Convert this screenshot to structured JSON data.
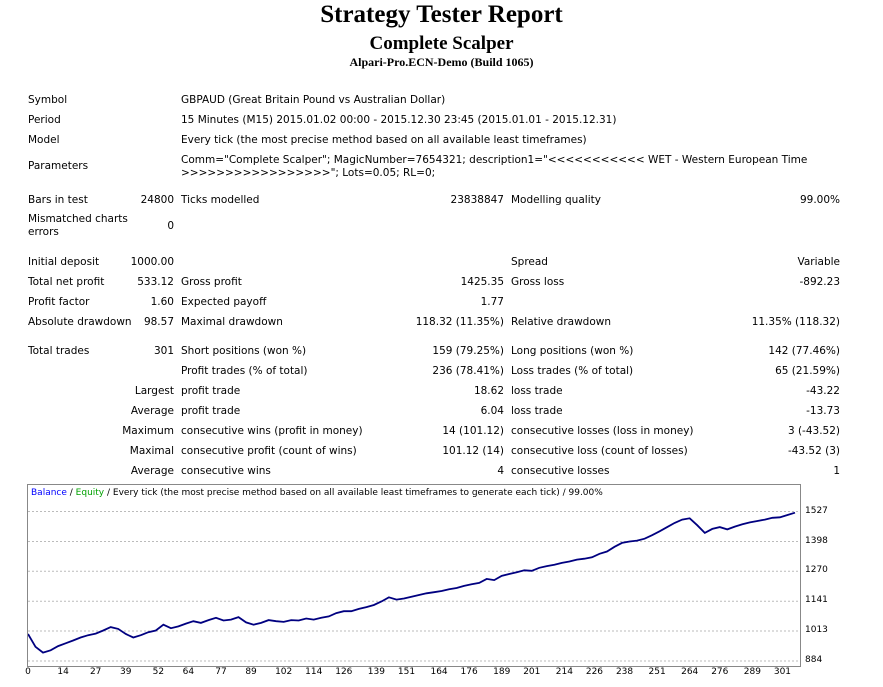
{
  "report": {
    "title": "Strategy Tester Report",
    "expert": "Complete Scalper",
    "server": "Alpari-Pro.ECN-Demo (Build 1065)"
  },
  "info": {
    "symbol_label": "Symbol",
    "symbol_value": "GBPAUD (Great Britain Pound vs Australian Dollar)",
    "period_label": "Period",
    "period_value": "15 Minutes (M15) 2015.01.02 00:00 - 2015.12.30 23:45 (2015.01.01 - 2015.12.31)",
    "model_label": "Model",
    "model_value": "Every tick (the most precise method based on all available least timeframes)",
    "parameters_label": "Parameters",
    "parameters_line1": "Comm=\"Complete Scalper\"; MagicNumber=7654321; description1=\"<<<<<<<<<<< WET - Western European Time",
    "parameters_line2": ">>>>>>>>>>>>>>>>>\"; Lots=0.05; RL=0;"
  },
  "bars": {
    "bars_label": "Bars in test",
    "bars_value": "24800",
    "ticks_label": "Ticks modelled",
    "ticks_value": "23838847",
    "quality_label": "Modelling quality",
    "quality_value": "99.00%",
    "mismatch_label": "Mismatched charts errors",
    "mismatch_value": "0"
  },
  "stats": {
    "deposit_label": "Initial deposit",
    "deposit_value": "1000.00",
    "spread_label": "Spread",
    "spread_value": "Variable",
    "net_label": "Total net profit",
    "net_value": "533.12",
    "gross_profit_label": "Gross profit",
    "gross_profit_value": "1425.35",
    "gross_loss_label": "Gross loss",
    "gross_loss_value": "-892.23",
    "pf_label": "Profit factor",
    "pf_value": "1.60",
    "payoff_label": "Expected payoff",
    "payoff_value": "1.77",
    "abs_dd_label": "Absolute drawdown",
    "abs_dd_value": "98.57",
    "max_dd_label": "Maximal drawdown",
    "max_dd_value": "118.32 (11.35%)",
    "rel_dd_label": "Relative drawdown",
    "rel_dd_value": "11.35% (118.32)"
  },
  "trades": {
    "total_label": "Total trades",
    "total_value": "301",
    "short_label": "Short positions (won %)",
    "short_value": "159 (79.25%)",
    "long_label": "Long positions (won %)",
    "long_value": "142 (77.46%)",
    "pt_label": "Profit trades (% of total)",
    "pt_value": "236 (78.41%)",
    "lt_label": "Loss trades (% of total)",
    "lt_value": "65 (21.59%)",
    "largest_label": "Largest",
    "largest_profit_label": "profit trade",
    "largest_profit_value": "18.62",
    "largest_loss_label": "loss trade",
    "largest_loss_value": "-43.22",
    "average_label": "Average",
    "average_profit_label": "profit trade",
    "average_profit_value": "6.04",
    "average_loss_label": "loss trade",
    "average_loss_value": "-13.73",
    "maximum_label": "Maximum",
    "max_wins_label": "consecutive wins (profit in money)",
    "max_wins_value": "14 (101.12)",
    "max_losses_label": "consecutive losses (loss in money)",
    "max_losses_value": "3 (-43.52)",
    "maximal_label": "Maximal",
    "maximal_profit_label": "consecutive profit (count of wins)",
    "maximal_profit_value": "101.12 (14)",
    "maximal_loss_label": "consecutive loss (count of losses)",
    "maximal_loss_value": "-43.52 (3)",
    "average2_label": "Average",
    "avg_wins_label": "consecutive wins",
    "avg_wins_value": "4",
    "avg_losses_label": "consecutive losses",
    "avg_losses_value": "1"
  },
  "chart_head": {
    "balance": "Balance",
    "sep": " / ",
    "equity": "Equity",
    "rest": " / Every tick (the most precise method based on all available least timeframes to generate each tick) / 99.00%",
    "balance_color": "#0000ff",
    "equity_color": "#00a000"
  },
  "chart_data": {
    "type": "line",
    "title": "",
    "xlabel": "",
    "ylabel": "",
    "xlim": [
      0,
      308
    ],
    "ylim": [
      884,
      1555
    ],
    "x_ticks": [
      "0",
      "14",
      "27",
      "39",
      "52",
      "64",
      "77",
      "89",
      "102",
      "114",
      "126",
      "139",
      "151",
      "164",
      "176",
      "189",
      "201",
      "214",
      "226",
      "238",
      "251",
      "264",
      "276",
      "289",
      "301"
    ],
    "y_ticks": [
      "1527",
      "1398",
      "1270",
      "1141",
      "1013",
      "884"
    ],
    "grid": true,
    "series": [
      {
        "color": "#000080",
        "x": [
          0,
          3,
          6,
          9,
          12,
          15,
          18,
          21,
          24,
          27,
          30,
          33,
          36,
          39,
          42,
          45,
          48,
          51,
          54,
          57,
          60,
          63,
          66,
          69,
          72,
          75,
          78,
          81,
          84,
          87,
          90,
          93,
          96,
          99,
          102,
          105,
          108,
          111,
          114,
          117,
          120,
          123,
          126,
          129,
          132,
          135,
          138,
          141,
          144,
          147,
          150,
          153,
          156,
          159,
          162,
          165,
          168,
          171,
          174,
          177,
          180,
          183,
          186,
          189,
          192,
          195,
          198,
          201,
          204,
          207,
          210,
          213,
          216,
          219,
          222,
          225,
          228,
          231,
          234,
          237,
          240,
          243,
          246,
          249,
          252,
          255,
          258,
          261,
          264,
          267,
          270,
          273,
          276,
          279,
          282,
          285,
          288,
          291,
          294,
          297,
          300,
          303,
          306
        ],
        "y": [
          1000,
          945,
          920,
          930,
          948,
          960,
          972,
          985,
          995,
          1002,
          1015,
          1030,
          1022,
          1000,
          985,
          995,
          1008,
          1015,
          1040,
          1025,
          1033,
          1045,
          1055,
          1048,
          1060,
          1070,
          1058,
          1062,
          1073,
          1050,
          1040,
          1048,
          1060,
          1055,
          1052,
          1060,
          1058,
          1067,
          1062,
          1070,
          1076,
          1090,
          1098,
          1098,
          1108,
          1116,
          1125,
          1140,
          1158,
          1148,
          1153,
          1160,
          1168,
          1175,
          1180,
          1185,
          1193,
          1198,
          1207,
          1214,
          1220,
          1237,
          1232,
          1250,
          1258,
          1266,
          1274,
          1272,
          1285,
          1292,
          1298,
          1306,
          1312,
          1320,
          1324,
          1330,
          1345,
          1355,
          1375,
          1392,
          1398,
          1402,
          1410,
          1425,
          1442,
          1460,
          1478,
          1492,
          1498,
          1468,
          1435,
          1452,
          1460,
          1450,
          1462,
          1472,
          1480,
          1486,
          1492,
          1500,
          1502,
          1512,
          1522
        ]
      }
    ]
  }
}
